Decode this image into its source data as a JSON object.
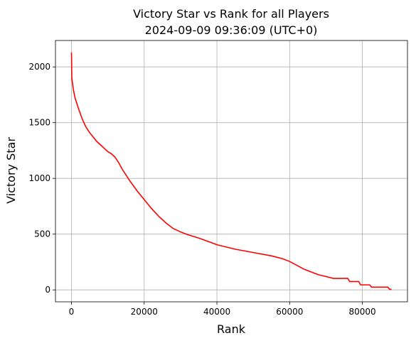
{
  "chart_data": {
    "type": "line",
    "title": "Victory Star vs Rank for all Players",
    "subtitle": "2024-09-09 09:36:09 (UTC+0)",
    "xlabel": "Rank",
    "ylabel": "Victory Star",
    "x": [
      0,
      100,
      500,
      1000,
      2000,
      3000,
      4000,
      5000,
      6000,
      7000,
      8000,
      9000,
      10000,
      11000,
      12000,
      13000,
      14000,
      15000,
      16000,
      18000,
      20000,
      22000,
      24000,
      26000,
      28000,
      30000,
      32000,
      35000,
      38000,
      40000,
      45000,
      50000,
      55000,
      58000,
      60000,
      62000,
      64000,
      66000,
      68000,
      70000,
      72000,
      76000,
      76500,
      79000,
      79500,
      82000,
      82500,
      87000,
      87500,
      88000
    ],
    "series": [
      {
        "name": "Victory Star",
        "color": "#ff0000",
        "values": [
          2130,
          1900,
          1800,
          1720,
          1620,
          1530,
          1460,
          1410,
          1370,
          1330,
          1300,
          1270,
          1240,
          1220,
          1190,
          1140,
          1080,
          1030,
          980,
          890,
          810,
          730,
          660,
          600,
          550,
          520,
          495,
          465,
          430,
          405,
          365,
          335,
          305,
          280,
          255,
          220,
          185,
          160,
          135,
          120,
          103,
          103,
          75,
          75,
          45,
          45,
          25,
          25,
          5,
          5
        ]
      }
    ],
    "xlim": [
      -4400,
      92400
    ],
    "ylim": [
      -107,
      2237
    ],
    "xticks": [
      0,
      20000,
      40000,
      60000,
      80000
    ],
    "yticks": [
      0,
      500,
      1000,
      1500,
      2000
    ],
    "grid": true
  }
}
